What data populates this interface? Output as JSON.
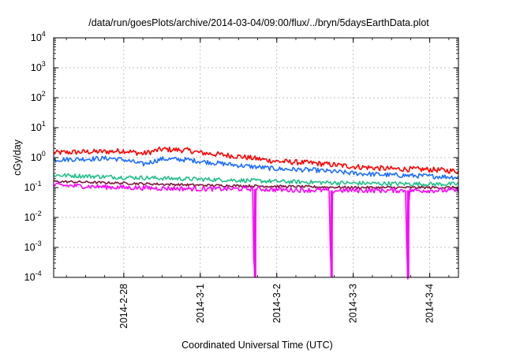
{
  "chart_data": {
    "type": "line",
    "title": "/data/run/goesPlots/archive/2014-03-04/09:00/flux/../bryn/5daysEarthData.plot",
    "xlabel": "Coordinated Universal Time (UTC)",
    "ylabel": "cGy/day",
    "y_scale": "log",
    "ylim": [
      0.0001,
      10000
    ],
    "y_ticks": [
      {
        "base": "10",
        "exp": "4"
      },
      {
        "base": "10",
        "exp": "3"
      },
      {
        "base": "10",
        "exp": "2"
      },
      {
        "base": "10",
        "exp": "1"
      },
      {
        "base": "10",
        "exp": "0"
      },
      {
        "base": "10",
        "exp": "-1"
      },
      {
        "base": "10",
        "exp": "-2"
      },
      {
        "base": "10",
        "exp": "-3"
      },
      {
        "base": "10",
        "exp": "-4"
      }
    ],
    "xlim": [
      "2014-02-27T02:00",
      "2014-03-04T09:00"
    ],
    "x_ticks": [
      "2014-2-28",
      "2014-3-1",
      "2014-3-2",
      "2014-3-3",
      "2014-3-4"
    ],
    "x_tick_dates": [
      "2014-02-28",
      "2014-03-01",
      "2014-03-02",
      "2014-03-03",
      "2014-03-04"
    ],
    "grid": true,
    "series": [
      {
        "color": "#ff0000",
        "points": [
          [
            "2014-02-27T02:00",
            1.45
          ],
          [
            "2014-02-27T12:00",
            1.55
          ],
          [
            "2014-02-27T20:00",
            1.6
          ],
          [
            "2014-02-28T00:00",
            1.7
          ],
          [
            "2014-02-28T06:00",
            1.35
          ],
          [
            "2014-02-28T12:00",
            1.9
          ],
          [
            "2014-02-28T20:00",
            1.75
          ],
          [
            "2014-03-01T00:00",
            1.45
          ],
          [
            "2014-03-01T12:00",
            1.1
          ],
          [
            "2014-03-02T00:00",
            0.75
          ],
          [
            "2014-03-02T12:00",
            0.65
          ],
          [
            "2014-03-03T00:00",
            0.5
          ],
          [
            "2014-03-03T12:00",
            0.42
          ],
          [
            "2014-03-04T00:00",
            0.4
          ],
          [
            "2014-03-04T09:00",
            0.35
          ]
        ]
      },
      {
        "color": "#1f6fff",
        "points": [
          [
            "2014-02-27T02:00",
            0.85
          ],
          [
            "2014-02-27T12:00",
            0.9
          ],
          [
            "2014-02-27T20:00",
            0.95
          ],
          [
            "2014-02-28T00:00",
            0.85
          ],
          [
            "2014-02-28T06:00",
            0.6
          ],
          [
            "2014-02-28T12:00",
            0.9
          ],
          [
            "2014-02-28T20:00",
            0.85
          ],
          [
            "2014-03-01T00:00",
            0.75
          ],
          [
            "2014-03-01T12:00",
            0.55
          ],
          [
            "2014-03-02T00:00",
            0.42
          ],
          [
            "2014-03-02T12:00",
            0.38
          ],
          [
            "2014-03-03T00:00",
            0.3
          ],
          [
            "2014-03-03T12:00",
            0.26
          ],
          [
            "2014-03-04T00:00",
            0.24
          ],
          [
            "2014-03-04T09:00",
            0.22
          ]
        ]
      },
      {
        "color": "#22c08a",
        "points": [
          [
            "2014-02-27T02:00",
            0.26
          ],
          [
            "2014-02-28T00:00",
            0.22
          ],
          [
            "2014-03-01T00:00",
            0.19
          ],
          [
            "2014-03-02T00:00",
            0.16
          ],
          [
            "2014-03-03T00:00",
            0.14
          ],
          [
            "2014-03-04T00:00",
            0.13
          ],
          [
            "2014-03-04T09:00",
            0.13
          ]
        ]
      },
      {
        "color": "#7a1a3a",
        "points": [
          [
            "2014-02-27T02:00",
            0.16
          ],
          [
            "2014-02-28T00:00",
            0.14
          ],
          [
            "2014-03-01T00:00",
            0.12
          ],
          [
            "2014-03-02T00:00",
            0.11
          ],
          [
            "2014-03-03T00:00",
            0.1
          ],
          [
            "2014-03-04T09:00",
            0.1
          ]
        ]
      },
      {
        "color": "#ff00ff",
        "points": [
          [
            "2014-02-27T02:00",
            0.12
          ],
          [
            "2014-02-28T00:00",
            0.1
          ],
          [
            "2014-03-01T00:00",
            0.09
          ],
          [
            "2014-03-01T16:40",
            0.09
          ],
          [
            "2014-03-01T16:50",
            0.0001
          ],
          [
            "2014-03-01T17:20",
            0.0001
          ],
          [
            "2014-03-01T17:30",
            0.09
          ],
          [
            "2014-03-02T00:00",
            0.085
          ],
          [
            "2014-03-02T16:40",
            0.08
          ],
          [
            "2014-03-02T16:50",
            0.0001
          ],
          [
            "2014-03-02T17:20",
            0.0001
          ],
          [
            "2014-03-02T17:30",
            0.08
          ],
          [
            "2014-03-03T00:00",
            0.08
          ],
          [
            "2014-03-03T16:40",
            0.08
          ],
          [
            "2014-03-03T16:50",
            0.0001
          ],
          [
            "2014-03-03T17:20",
            0.0001
          ],
          [
            "2014-03-03T17:30",
            0.08
          ],
          [
            "2014-03-04T09:00",
            0.08
          ]
        ]
      }
    ]
  }
}
